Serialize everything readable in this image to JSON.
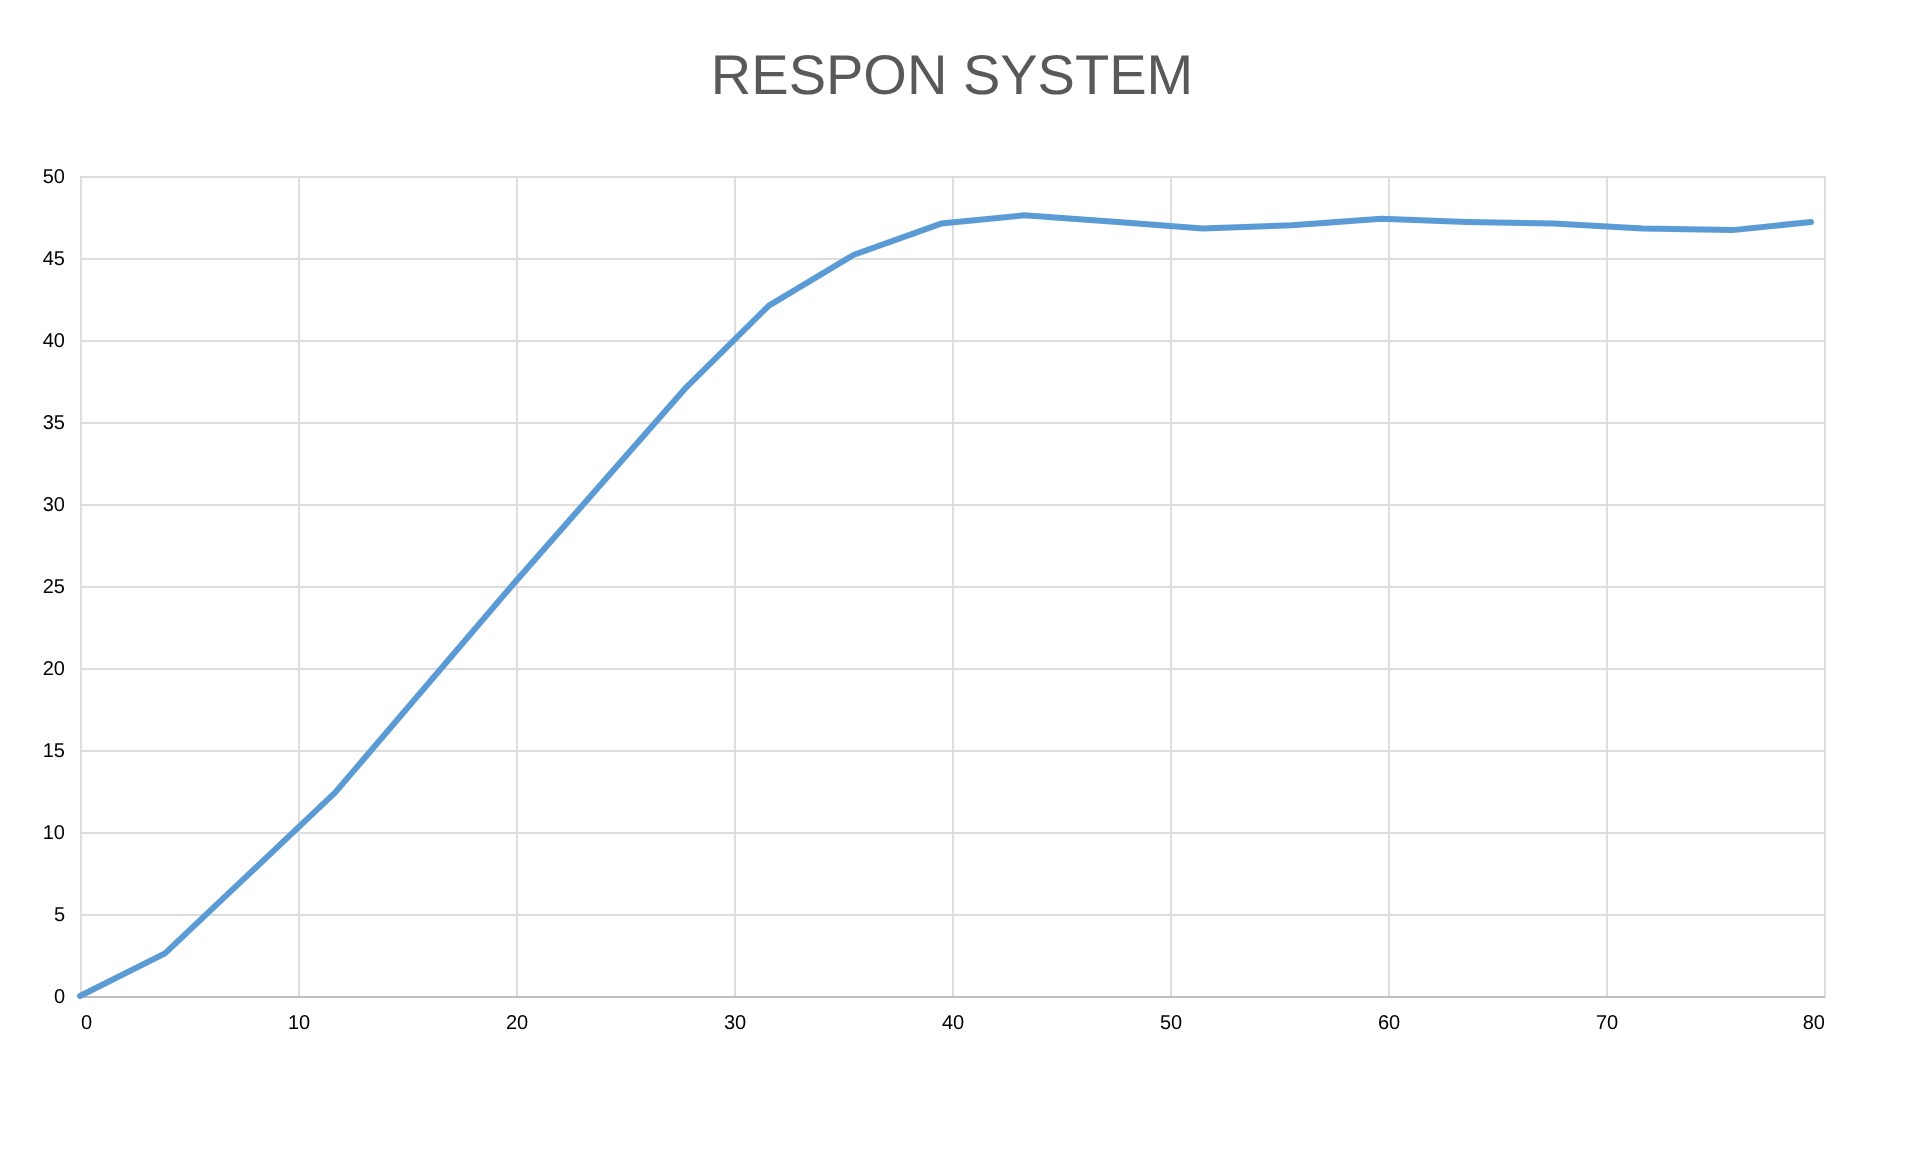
{
  "chart_data": {
    "type": "line",
    "title": "RESPON SYSTEM",
    "x": [
      0,
      3.9,
      11.7,
      19.8,
      27.8,
      31.6,
      35.5,
      39.5,
      43.3,
      47.6,
      51.5,
      55.6,
      59.7,
      63.6,
      67.6,
      71.7,
      75.8,
      79.4
    ],
    "series": [
      {
        "color": "#5b9bd5",
        "values": [
          0,
          2.6,
          12.4,
          25,
          37.1,
          42.1,
          45.2,
          47.1,
          47.6,
          47.2,
          46.8,
          47.0,
          47.4,
          47.2,
          47.1,
          46.8,
          46.7,
          47.2
        ]
      }
    ],
    "xlim": [
      0,
      80
    ],
    "xticks": [
      0,
      10,
      20,
      30,
      40,
      50,
      60,
      70,
      80
    ],
    "ylim": [
      0,
      50
    ],
    "yticks": [
      0,
      5,
      10,
      15,
      20,
      25,
      30,
      35,
      40,
      45,
      50
    ],
    "grid": true,
    "marker": "none",
    "line_style": "solid"
  }
}
